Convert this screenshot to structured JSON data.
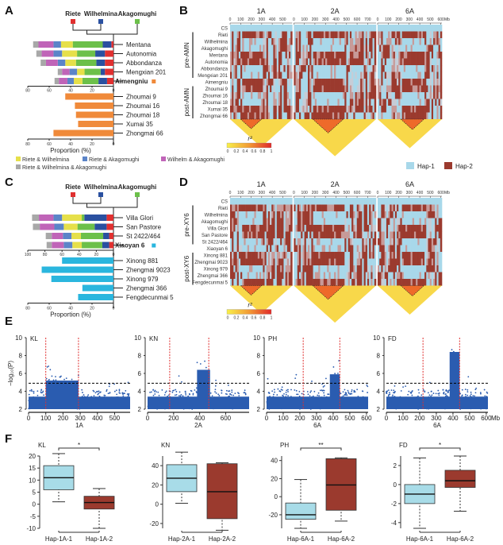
{
  "panel_labels": [
    "A",
    "B",
    "C",
    "D",
    "E",
    "F"
  ],
  "colors": {
    "riete": "#e03030",
    "wilhelmina": "#2a50a0",
    "akagomughi": "#6cc04a",
    "riete_wilhelmina": "#e6e04a",
    "riete_akagomughi": "#5b84c8",
    "wilhelm_akagomughi": "#c064b8",
    "all_three": "#a8a8a8",
    "aimengniu": "#f08a3a",
    "xiaoyan": "#2ab6de",
    "hap1": "#a8d8ea",
    "hap2": "#9b3a2e",
    "manhattan": "#2a5cb0",
    "threshold": "#000000",
    "qtl_line": "#e03030",
    "box_hap1": "#a8dce8",
    "box_hap2": "#9b3a2e"
  },
  "legend_segments": {
    "riete_wilhelmina": "Riete & Wilhelmina",
    "riete_akagomughi": "Riete & Akagomughi",
    "wilhelm_akagomughi": "Wilhelm & Akagomughi",
    "all_three": "Riete & Wilhelmina & Akagomughi"
  },
  "hap_legend": {
    "hap1": "Hap-1",
    "hap2": "Hap-2"
  },
  "r2_legend": {
    "title": "r²",
    "ticks": [
      "0",
      "0.2",
      "0.4",
      "0.6",
      "0.8",
      "1"
    ]
  },
  "chart_data": [
    {
      "id": "A",
      "type": "bar",
      "title": "",
      "founders": [
        "Riete",
        "Wilhelmina",
        "Akagomughi"
      ],
      "xlabel": "Proportion (%)",
      "xlim": [
        80,
        0
      ],
      "xticks": [
        "80",
        "60",
        "40",
        "20",
        "0"
      ],
      "stacked_order": [
        "riete",
        "wilhelmina",
        "akagomughi",
        "riete_wilhelmina",
        "riete_akagomughi",
        "wilhelm_akagomughi",
        "all_three"
      ],
      "stacked": [
        {
          "name": "Mentana",
          "values": [
            2,
            8,
            28,
            11,
            7,
            14,
            5
          ]
        },
        {
          "name": "Autonomia",
          "values": [
            8,
            9,
            17,
            14,
            8,
            11,
            5
          ]
        },
        {
          "name": "Abbondanza",
          "values": [
            8,
            8,
            19,
            10,
            7,
            11,
            5
          ]
        },
        {
          "name": "Mengxian 201",
          "values": [
            8,
            4,
            15,
            7,
            7,
            7,
            4
          ]
        },
        {
          "name": "Aimengniu",
          "values": [
            6,
            8,
            15,
            8,
            6,
            8,
            4
          ]
        }
      ],
      "focal": {
        "name": "Aimengniu",
        "marker_color_key": "aimengniu"
      },
      "bars": [
        {
          "name": "Zhoumai 9",
          "value": 45
        },
        {
          "name": "Zhoumai 16",
          "value": 36
        },
        {
          "name": "Zhoumai 18",
          "value": 35
        },
        {
          "name": "Xumai 35",
          "value": 33
        },
        {
          "name": "Zhongmai 66",
          "value": 56
        }
      ]
    },
    {
      "id": "C",
      "type": "bar",
      "founders": [
        "Riete",
        "Wilhelmina",
        "Akagomughi"
      ],
      "xlabel": "Proportion (%)",
      "xlim_top": [
        100,
        0
      ],
      "xticks_top": [
        "100",
        "80",
        "60",
        "40",
        "20",
        "0"
      ],
      "xlim": [
        80,
        0
      ],
      "xticks": [
        "80",
        "60",
        "40",
        "20",
        "0"
      ],
      "stacked_order": [
        "riete",
        "wilhelmina",
        "akagomughi",
        "riete_wilhelmina",
        "riete_akagomughi",
        "wilhelm_akagomughi",
        "all_three"
      ],
      "stacked": [
        {
          "name": "Villa Glori",
          "values": [
            8,
            26,
            3,
            23,
            10,
            17,
            8
          ]
        },
        {
          "name": "San Pastore",
          "values": [
            8,
            14,
            20,
            16,
            11,
            17,
            8
          ]
        },
        {
          "name": "St 2422/464",
          "values": [
            5,
            7,
            26,
            11,
            10,
            13,
            7
          ]
        },
        {
          "name": "Xiaoyan 6",
          "values": [
            5,
            8,
            24,
            11,
            10,
            14,
            6
          ]
        }
      ],
      "focal": {
        "name": "Xiaoyan 6",
        "marker_color_key": "xiaoyan"
      },
      "bars": [
        {
          "name": "Xinong 881",
          "value": 48
        },
        {
          "name": "Zhengmai 9023",
          "value": 67
        },
        {
          "name": "Xinong 979",
          "value": 58
        },
        {
          "name": "Zhengmai 366",
          "value": 29
        },
        {
          "name": "Fengdecunmai 5",
          "value": 33
        }
      ]
    },
    {
      "id": "B",
      "type": "heatmap",
      "chromosomes": [
        {
          "name": "1A",
          "length_mb": 590,
          "ticks": [
            "0",
            "100",
            "200",
            "300",
            "400",
            "500"
          ]
        },
        {
          "name": "2A",
          "length_mb": 780,
          "ticks": [
            "0",
            "100",
            "200",
            "300",
            "400",
            "500",
            "600",
            "700"
          ]
        },
        {
          "name": "6A",
          "length_mb": 610,
          "ticks": [
            "0",
            "100",
            "200",
            "300",
            "400",
            "500",
            "600"
          ]
        }
      ],
      "unit": "Mb",
      "groups": [
        {
          "label": "pre-AMN",
          "rows": [
            "Rieti",
            "Wilhelmina",
            "Akagomughi",
            "Mentana",
            "Autonomia",
            "Abbondanza",
            "Mengxian 201"
          ]
        },
        {
          "label": "post-AMN",
          "rows": [
            "Zhoumai 9",
            "Zhoumai 16",
            "Zhoumai 18",
            "Xumai 35",
            "Zhongmai 66"
          ]
        }
      ],
      "rows": [
        "CS",
        "Rieti",
        "Wilhelmina",
        "Akagomughi",
        "Mentana",
        "Autonomia",
        "Abbondanza",
        "Mengxian 201",
        "Aimengniu",
        "Zhoumai 9",
        "Zhoumai 16",
        "Zhoumai 18",
        "Xumai 35",
        "Zhongmai 66"
      ],
      "ld_blocks": [
        {
          "chrom": "1A",
          "start": 100,
          "end": 300
        },
        {
          "chrom": "2A",
          "start": 180,
          "end": 470
        },
        {
          "chrom": "6A",
          "start": 220,
          "end": 440
        }
      ]
    },
    {
      "id": "D",
      "type": "heatmap",
      "chromosomes": [
        {
          "name": "1A",
          "length_mb": 590,
          "ticks": [
            "0",
            "100",
            "200",
            "300",
            "400",
            "500"
          ]
        },
        {
          "name": "2A",
          "length_mb": 780,
          "ticks": [
            "0",
            "100",
            "200",
            "300",
            "400",
            "500",
            "600",
            "700"
          ]
        },
        {
          "name": "6A",
          "length_mb": 610,
          "ticks": [
            "0",
            "100",
            "200",
            "300",
            "400",
            "500",
            "600"
          ]
        }
      ],
      "unit": "Mb",
      "groups": [
        {
          "label": "pre-XY6",
          "rows": [
            "Rieti",
            "Wilhelmina",
            "Akagomughi",
            "Villa Glori",
            "San Pastore",
            "St 2422/464"
          ]
        },
        {
          "label": "post-XY6",
          "rows": [
            "Xinong 881",
            "Zhengmai 9023",
            "Xinong 979",
            "Zhengmai 366",
            "Fengdecunmai 5"
          ]
        }
      ],
      "rows": [
        "CS",
        "Rieti",
        "Wilhelmina",
        "Akagomughi",
        "Villa Glori",
        "San Pastore",
        "St 2422/464",
        "Xiaoyan 6",
        "Xinong 881",
        "Zhengmai 9023",
        "Xinong 979",
        "Zhengmai 366",
        "Fengdecunmai 5"
      ],
      "ld_blocks": [
        {
          "chrom": "1A",
          "start": 100,
          "end": 300
        },
        {
          "chrom": "2A",
          "start": 180,
          "end": 470
        },
        {
          "chrom": "6A",
          "start": 220,
          "end": 440
        }
      ]
    },
    {
      "id": "E",
      "type": "scatter",
      "ylabel": "-log10(P)",
      "ylim": [
        2,
        10
      ],
      "yticks": [
        "2",
        "4",
        "6",
        "8",
        "10"
      ],
      "threshold": 4.9,
      "plots": [
        {
          "trait": "KL",
          "chrom": "1A",
          "xmax": 590,
          "xticks": [
            "0",
            "100",
            "200",
            "300",
            "400",
            "500"
          ],
          "qtl": [
            100,
            290
          ],
          "peak_regions": [
            {
              "start": 100,
              "end": 290,
              "level": 5.8
            }
          ],
          "max": 8.8
        },
        {
          "trait": "KN",
          "chrom": "2A",
          "xmax": 780,
          "xticks": [
            "0",
            "200",
            "400",
            "600"
          ],
          "qtl": [
            170,
            470
          ],
          "peak_regions": [
            {
              "start": 380,
              "end": 480,
              "level": 7.0
            }
          ],
          "max": 8.0
        },
        {
          "trait": "PH",
          "chrom": "6A",
          "xmax": 610,
          "xticks": [
            "0",
            "100",
            "200",
            "300",
            "400",
            "500",
            "600"
          ],
          "qtl": [
            220,
            440
          ],
          "peak_regions": [
            {
              "start": 380,
              "end": 440,
              "level": 6.5
            }
          ],
          "max": 8.6
        },
        {
          "trait": "FD",
          "chrom": "6A",
          "xmax": 610,
          "xticks": [
            "0",
            "100",
            "200",
            "300",
            "400",
            "500",
            "600"
          ],
          "xunit": "Mb",
          "qtl": [
            220,
            440
          ],
          "peak_regions": [
            {
              "start": 380,
              "end": 440,
              "level": 9.0
            }
          ],
          "max": 10.6
        }
      ]
    },
    {
      "id": "F",
      "type": "box",
      "plots": [
        {
          "trait": "KL",
          "ylim": [
            -10,
            20
          ],
          "yticks": [
            "-10",
            "-5",
            "0",
            "5",
            "10",
            "15",
            "20"
          ],
          "sig": "*",
          "boxes": [
            {
              "label": "Hap-1A-1",
              "whisker_low": 1,
              "q1": 6,
              "median": 11,
              "q3": 16,
              "whisker_high": 21
            },
            {
              "label": "Hap-1A-2",
              "whisker_low": -10,
              "q1": -2,
              "median": 0.7,
              "q3": 3.3,
              "whisker_high": 6.5
            }
          ]
        },
        {
          "trait": "KN",
          "ylim": [
            -25,
            50
          ],
          "yticks": [
            "-20",
            "0",
            "20",
            "40"
          ],
          "sig": "",
          "boxes": [
            {
              "label": "Hap-2A-1",
              "whisker_low": 1,
              "q1": 13,
              "median": 27,
              "q3": 41,
              "whisker_high": 54
            },
            {
              "label": "Hap-2A-2",
              "whisker_low": -27,
              "q1": -15,
              "median": 13,
              "q3": 42,
              "whisker_high": 43
            }
          ]
        },
        {
          "trait": "PH",
          "ylim": [
            -35,
            45
          ],
          "yticks": [
            "-20",
            "0",
            "20",
            "40"
          ],
          "sig": "**",
          "boxes": [
            {
              "label": "Hap-6A-1",
              "whisker_low": -35,
              "q1": -25,
              "median": -20,
              "q3": -7,
              "whisker_high": 19
            },
            {
              "label": "Hap-6A-2",
              "whisker_low": -27,
              "q1": -15,
              "median": 13,
              "q3": 42,
              "whisker_high": 43
            }
          ]
        },
        {
          "trait": "FD",
          "ylim": [
            -4.6,
            3
          ],
          "yticks": [
            "-4",
            "-2",
            "0",
            "2"
          ],
          "sig": "*",
          "boxes": [
            {
              "label": "Hap-6A-1",
              "whisker_low": -4.6,
              "q1": -2,
              "median": -1,
              "q3": 0,
              "whisker_high": 2.8
            },
            {
              "label": "Hap-6A-2",
              "whisker_low": -2.8,
              "q1": -0.3,
              "median": 0.4,
              "q3": 1.5,
              "whisker_high": 3
            }
          ]
        }
      ]
    }
  ]
}
